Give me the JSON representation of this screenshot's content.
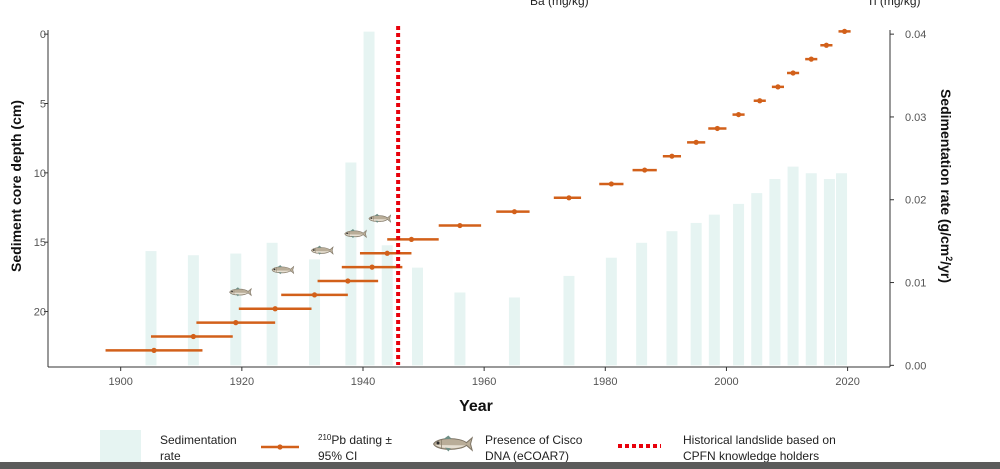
{
  "header_fragments": {
    "left": "Ba (mg/kg)",
    "right": "Ti (mg/kg)"
  },
  "colors": {
    "sed_bar": "#e6f4f2",
    "dating": "#d2601a",
    "landslide": "#e8000b",
    "fish_body": "#b9ad98",
    "fish_belly": "#e6dfd2",
    "fish_fin": "#6f8f86"
  },
  "chart_data": {
    "type": "mixed",
    "xlabel": "Year",
    "ylabel_left": "Sediment core depth (cm)",
    "ylabel_right_parts": [
      "Sedimentation rate (g/cm",
      "2",
      "/yr)"
    ],
    "xlim": [
      1888,
      2027
    ],
    "x_ticks": [
      1900,
      1920,
      1940,
      1960,
      1980,
      2000,
      2020
    ],
    "x_tick_labels": [
      "1900",
      "1920",
      "1940",
      "1960",
      "1980",
      "2000",
      "2020"
    ],
    "depth_lim": [
      -0.3,
      24.0
    ],
    "depth_ticks": [
      0,
      5,
      10,
      15,
      20
    ],
    "depth_tick_labels": [
      "0",
      "5",
      "10",
      "15",
      "20"
    ],
    "rate_lim": [
      -0.0002,
      0.0405
    ],
    "rate_ticks": [
      0,
      0.01,
      0.02,
      0.03,
      0.04
    ],
    "rate_tick_labels": [
      "0.00",
      "0.01",
      "0.02",
      "0.03",
      "0.04"
    ],
    "grid": false,
    "sedimentation_rate": {
      "name": "Sedimentation rate",
      "years": [
        1905,
        1912,
        1919,
        1925,
        1932,
        1938,
        1941,
        1944,
        1949,
        1956,
        1965,
        1974,
        1981,
        1986,
        1991,
        1995,
        1998,
        2002,
        2005,
        2008,
        2011,
        2014,
        2017,
        2019
      ],
      "values": [
        0.0138,
        0.0133,
        0.0135,
        0.0148,
        0.0128,
        0.0245,
        0.0403,
        0.0145,
        0.0118,
        0.0088,
        0.0082,
        0.0108,
        0.013,
        0.0148,
        0.0162,
        0.0172,
        0.0182,
        0.0195,
        0.0208,
        0.0225,
        0.024,
        0.0232,
        0.0225,
        0.0232
      ]
    },
    "dating": {
      "name": "210Pb dating ± 95% CI",
      "points": [
        {
          "year": 1905.5,
          "lo": 1897.5,
          "hi": 1913.5,
          "depth": 22.8
        },
        {
          "year": 1912.0,
          "lo": 1905.0,
          "hi": 1918.5,
          "depth": 21.8
        },
        {
          "year": 1919.0,
          "lo": 1912.5,
          "hi": 1925.5,
          "depth": 20.8
        },
        {
          "year": 1925.5,
          "lo": 1919.5,
          "hi": 1931.5,
          "depth": 19.8
        },
        {
          "year": 1932.0,
          "lo": 1926.5,
          "hi": 1937.5,
          "depth": 18.8
        },
        {
          "year": 1937.5,
          "lo": 1932.5,
          "hi": 1942.5,
          "depth": 17.8
        },
        {
          "year": 1941.5,
          "lo": 1936.5,
          "hi": 1946.5,
          "depth": 16.8
        },
        {
          "year": 1944.0,
          "lo": 1939.5,
          "hi": 1948.0,
          "depth": 15.8
        },
        {
          "year": 1948.0,
          "lo": 1944.0,
          "hi": 1952.5,
          "depth": 14.8
        },
        {
          "year": 1956.0,
          "lo": 1952.5,
          "hi": 1959.5,
          "depth": 13.8
        },
        {
          "year": 1965.0,
          "lo": 1962.0,
          "hi": 1967.5,
          "depth": 12.8
        },
        {
          "year": 1974.0,
          "lo": 1971.5,
          "hi": 1976.0,
          "depth": 11.8
        },
        {
          "year": 1981.0,
          "lo": 1979.0,
          "hi": 1983.0,
          "depth": 10.8
        },
        {
          "year": 1986.5,
          "lo": 1984.5,
          "hi": 1988.5,
          "depth": 9.8
        },
        {
          "year": 1991.0,
          "lo": 1989.5,
          "hi": 1992.5,
          "depth": 8.8
        },
        {
          "year": 1995.0,
          "lo": 1993.5,
          "hi": 1996.5,
          "depth": 7.8
        },
        {
          "year": 1998.5,
          "lo": 1997.0,
          "hi": 2000.0,
          "depth": 6.8
        },
        {
          "year": 2002.0,
          "lo": 2001.0,
          "hi": 2003.0,
          "depth": 5.8
        },
        {
          "year": 2005.5,
          "lo": 2004.5,
          "hi": 2006.5,
          "depth": 4.8
        },
        {
          "year": 2008.5,
          "lo": 2007.5,
          "hi": 2009.5,
          "depth": 3.8
        },
        {
          "year": 2011.0,
          "lo": 2010.0,
          "hi": 2012.0,
          "depth": 2.8
        },
        {
          "year": 2014.0,
          "lo": 2013.0,
          "hi": 2015.0,
          "depth": 1.8
        },
        {
          "year": 2016.5,
          "lo": 2015.5,
          "hi": 2017.5,
          "depth": 0.8
        },
        {
          "year": 2019.5,
          "lo": 2018.5,
          "hi": 2020.5,
          "depth": -0.2
        }
      ]
    },
    "cisco_dna": {
      "name": "Presence of Cisco DNA (eCOAR7)",
      "points": [
        {
          "year": 1919.5,
          "depth": 18.6
        },
        {
          "year": 1926.5,
          "depth": 17.0
        },
        {
          "year": 1933.0,
          "depth": 15.6
        },
        {
          "year": 1938.5,
          "depth": 14.4
        },
        {
          "year": 1942.5,
          "depth": 13.3
        }
      ]
    },
    "landslide": {
      "name": "Historical landslide based on CPFN knowledge holders",
      "year": 1945.8
    }
  },
  "legend": {
    "sed_label": [
      "Sedimentation",
      "rate"
    ],
    "dating_label_sup": "210",
    "dating_label_rest": "Pb dating ±",
    "dating_label_line2": "95% CI",
    "cisco_label": [
      "Presence of Cisco",
      "DNA (eCOAR7)"
    ],
    "landslide_label": [
      "Historical landslide based on",
      "CPFN knowledge holders"
    ]
  }
}
